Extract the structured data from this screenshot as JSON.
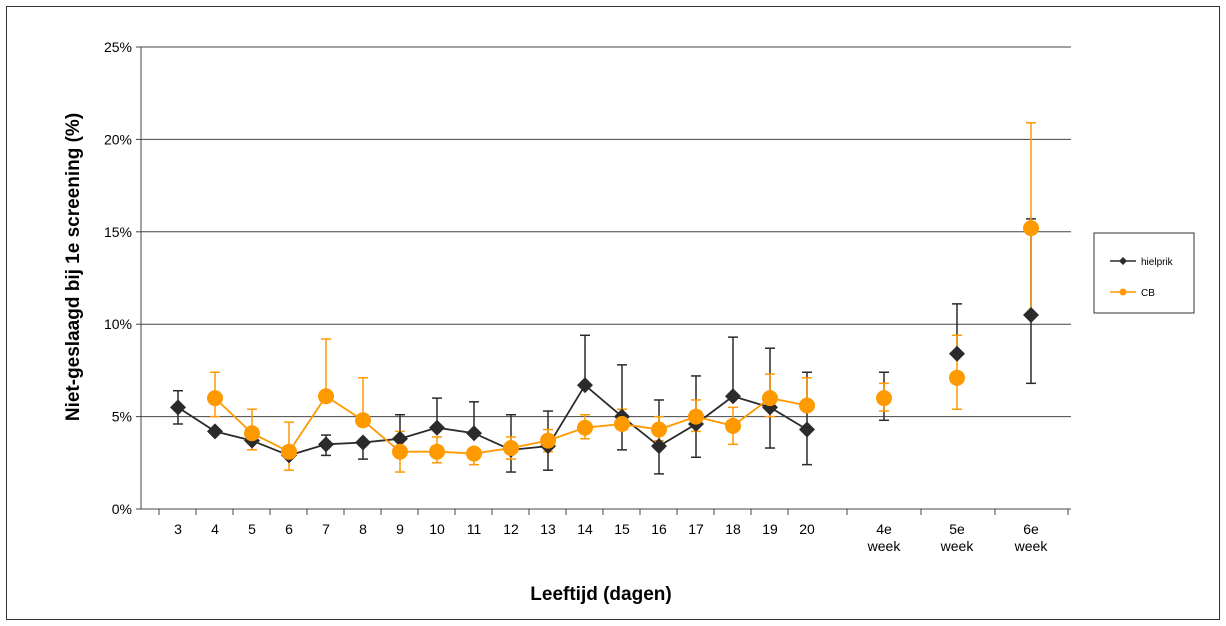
{
  "chart_data": {
    "type": "line",
    "title": "",
    "xlabel": "Leeftijd (dagen)",
    "ylabel": "Niet-geslaagd bij 1e screening (%)",
    "ylim": [
      0,
      25
    ],
    "yticks": [
      "0%",
      "5%",
      "10%",
      "15%",
      "20%",
      "25%"
    ],
    "categories": [
      [
        "3"
      ],
      [
        "4"
      ],
      [
        "5"
      ],
      [
        "6"
      ],
      [
        "7"
      ],
      [
        "8"
      ],
      [
        "9"
      ],
      [
        "10"
      ],
      [
        "11"
      ],
      [
        "12"
      ],
      [
        "13"
      ],
      [
        "14"
      ],
      [
        "15"
      ],
      [
        "16"
      ],
      [
        "17"
      ],
      [
        "18"
      ],
      [
        "19"
      ],
      [
        "20"
      ],
      [
        "4e",
        "week"
      ],
      [
        "5e",
        "week"
      ],
      [
        "6e",
        "week"
      ]
    ],
    "grid": "horizontal major gridlines",
    "legend_position": "right",
    "series": [
      {
        "name": "hielprik",
        "color": "#2b2b2b",
        "marker": "diamond",
        "values": [
          5.5,
          4.2,
          3.7,
          2.9,
          3.5,
          3.6,
          3.8,
          4.4,
          4.1,
          3.2,
          3.4,
          6.7,
          5.0,
          3.4,
          4.6,
          6.1,
          5.5,
          4.3,
          6.0,
          8.4,
          10.5
        ],
        "error_low": [
          4.6,
          null,
          null,
          null,
          2.9,
          2.7,
          null,
          null,
          null,
          2.0,
          2.1,
          null,
          3.2,
          1.9,
          2.8,
          null,
          3.3,
          2.4,
          4.8,
          null,
          6.8
        ],
        "error_high": [
          6.4,
          null,
          null,
          null,
          4.0,
          null,
          5.1,
          6.0,
          5.8,
          5.1,
          5.3,
          9.4,
          7.8,
          5.9,
          7.2,
          9.3,
          8.7,
          7.4,
          7.4,
          11.1,
          15.7
        ],
        "connected_points": 18
      },
      {
        "name": "CB",
        "color": "#ff9900",
        "marker": "circle",
        "values": [
          null,
          6.0,
          4.1,
          3.1,
          6.1,
          4.8,
          3.1,
          3.1,
          3.0,
          3.3,
          3.7,
          4.4,
          4.6,
          4.3,
          5.0,
          4.5,
          6.0,
          5.6,
          6.0,
          7.1,
          15.2
        ],
        "error_low": [
          null,
          5.0,
          3.2,
          2.1,
          null,
          null,
          2.0,
          2.5,
          2.4,
          2.7,
          3.1,
          3.8,
          null,
          3.7,
          4.2,
          3.5,
          5.0,
          null,
          5.3,
          5.4,
          10.5
        ],
        "error_high": [
          null,
          7.4,
          5.4,
          4.7,
          9.2,
          7.1,
          4.2,
          3.9,
          null,
          3.9,
          4.3,
          5.1,
          5.4,
          5.0,
          5.9,
          5.5,
          7.3,
          7.1,
          6.8,
          9.4,
          20.9
        ],
        "connected_points": 18
      }
    ]
  }
}
